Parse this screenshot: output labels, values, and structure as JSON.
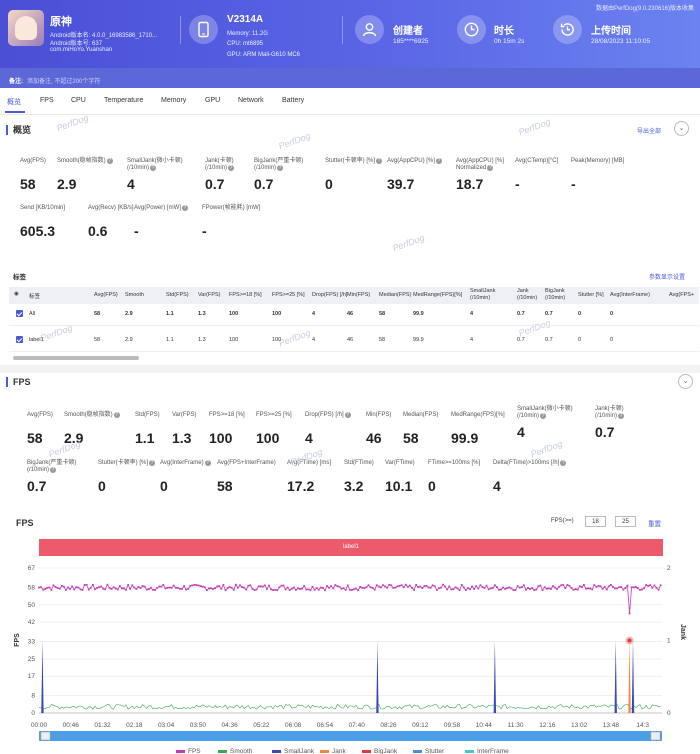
{
  "header": {
    "top_note": "数据由PerfDog(9.0.230616)版本收集",
    "app_name": "原神",
    "app_version": "Android版本名: 4.0.0_16983586_1710...",
    "app_build": "Android版本号: 637",
    "package": "com.miHoYo.Yuanshan",
    "device": {
      "name": "V2314A",
      "memory": "Memory: 11.2G",
      "cpu": "CPU: mt6895",
      "gpu": "GPU: ARM Mali-G610 MC6"
    },
    "creator_label": "创建者",
    "creator_value": "185****6925",
    "duration_label": "时长",
    "duration_value": "0h 15m 2s",
    "upload_label": "上传时间",
    "upload_value": "28/08/2023 11:10:05",
    "remark_label": "备注:",
    "remark_placeholder": "添加备注, 不超过200个字符"
  },
  "tabs": [
    "概览",
    "FPS",
    "CPU",
    "Temperature",
    "Memory",
    "GPU",
    "Network",
    "Battery"
  ],
  "overview": {
    "title": "概览",
    "export": "导出全部",
    "metrics": [
      {
        "label": "Avg(FPS)",
        "value": "58"
      },
      {
        "label": "Smooth(稳帧指数)",
        "value": "2.9",
        "q": true
      },
      {
        "label": "SmallJank(微小卡顿)",
        "label2": "(/10min)",
        "value": "4",
        "q": true
      },
      {
        "label": "Jank(卡顿)",
        "label2": "(/10min)",
        "value": "0.7",
        "q": true
      },
      {
        "label": "BigJank(严重卡顿)",
        "label2": "(/10min)",
        "value": "0.7",
        "q": true
      },
      {
        "label": "Stutter(卡顿率) [%]",
        "value": "0",
        "q": true
      },
      {
        "label": "Avg(AppCPU) [%]",
        "value": "39.7",
        "q": true
      },
      {
        "label": "Avg(AppCPU) [%]",
        "label2": "Normalized",
        "value": "18.7",
        "q": true
      },
      {
        "label": "Avg(CTemp)[°C]",
        "value": "-"
      },
      {
        "label": "Peak(Memory) [MB]",
        "value": "-"
      },
      {
        "label": "Send [KB/10min]",
        "value": "605.3"
      },
      {
        "label": "Avg(Recv) [KB/s]",
        "value": "0.6"
      },
      {
        "label": "Avg(Power) [mW]",
        "value": "-",
        "q": true
      },
      {
        "label": "FPower(帧能耗) [mW]",
        "value": "-"
      }
    ]
  },
  "tags": {
    "title": "标签",
    "settings": "参数显示设置",
    "columns": [
      "标签",
      "Avg(FPS)",
      "Smooth",
      "Std(FPS)",
      "Var(FPS)",
      "FPS>=18 [%]",
      "FPS>=25 [%]",
      "Drop(FPS) [/h]",
      "Min(FPS)",
      "Median(FPS)",
      "MedRange(FPS)[%]",
      "SmallJank (/10min)",
      "Jank (/10min)",
      "BigJank (/10min)",
      "Stutter [%]",
      "Avg(InterFrame)",
      "Avg(FPS+"
    ],
    "rows": [
      [
        "All",
        "58",
        "2.9",
        "1.1",
        "1.3",
        "100",
        "100",
        "4",
        "46",
        "58",
        "99.9",
        "4",
        "0.7",
        "0.7",
        "0",
        "0"
      ],
      [
        "label1",
        "58",
        "2.9",
        "1.1",
        "1.3",
        "100",
        "100",
        "4",
        "46",
        "58",
        "99.9",
        "4",
        "0.7",
        "0.7",
        "0",
        "0"
      ]
    ]
  },
  "fps_section": {
    "title": "FPS",
    "metrics": [
      {
        "label": "Avg(FPS)",
        "value": "58"
      },
      {
        "label": "Smooth(稳帧指数)",
        "value": "2.9",
        "q": true
      },
      {
        "label": "Std(FPS)",
        "value": "1.1"
      },
      {
        "label": "Var(FPS)",
        "value": "1.3"
      },
      {
        "label": "FPS>=18 [%]",
        "value": "100"
      },
      {
        "label": "FPS>=25 [%]",
        "value": "100"
      },
      {
        "label": "Drop(FPS) [/h]",
        "value": "4",
        "q": true
      },
      {
        "label": "Min(FPS)",
        "value": "46"
      },
      {
        "label": "Median(FPS)",
        "value": "58"
      },
      {
        "label": "MedRange(FPS)[%]",
        "value": "99.9"
      },
      {
        "label": "SmallJank(微小卡顿)",
        "label2": "(/10min)",
        "value": "4",
        "q": true
      },
      {
        "label": "Jank(卡顿)",
        "label2": "(/10min)",
        "value": "0.7",
        "q": true
      },
      {
        "label": "BigJank(严重卡顿)",
        "label2": "(/10min)",
        "value": "0.7",
        "q": true
      },
      {
        "label": "Stutter(卡顿率) [%]",
        "value": "0",
        "q": true
      },
      {
        "label": "Avg(InterFrame)",
        "value": "0",
        "q": true
      },
      {
        "label": "Avg(FPS+InterFrame)",
        "value": "58"
      },
      {
        "label": "Avg(FTime) [ms]",
        "value": "17.2"
      },
      {
        "label": "Std(FTime)",
        "value": "3.2"
      },
      {
        "label": "Var(FTime)",
        "value": "10.1"
      },
      {
        "label": "FTime>=100ms [%]",
        "value": "0"
      },
      {
        "label": "Delta(FTime)>100ms [/h]",
        "value": "4",
        "q": true
      }
    ],
    "chart_title": "FPS",
    "threshold_label": "FPS(>=)",
    "threshold_a": "18",
    "threshold_b": "25",
    "reset": "重置",
    "label_bar": "label1"
  },
  "watermark": "PerfDog",
  "chart_data": {
    "type": "line",
    "ylabel": "FPS",
    "y2label": "Jank",
    "yticks": [
      0,
      8,
      17,
      25,
      33,
      42,
      50,
      58,
      67
    ],
    "y2ticks": [
      0,
      1,
      2
    ],
    "xticks": [
      "00:00",
      "00:46",
      "01:32",
      "02:18",
      "03:04",
      "03:50",
      "04:36",
      "05:22",
      "06:08",
      "06:54",
      "07:40",
      "08:26",
      "09:12",
      "09:58",
      "10:44",
      "11:30",
      "12:16",
      "13:02",
      "13:48",
      "14:3"
    ],
    "xrange_seconds": [
      0,
      902
    ],
    "ylim": [
      0,
      67
    ],
    "y2lim": [
      0,
      2
    ],
    "series": [
      {
        "name": "FPS",
        "color": "#c23fb8",
        "avg": 58,
        "min": 46
      },
      {
        "name": "Smooth",
        "color": "#3aa855",
        "avg": 2.9
      },
      {
        "name": "SmallJank",
        "color": "#3b49b8",
        "events_time_s": [
          5,
          490,
          660,
          835,
          860
        ]
      },
      {
        "name": "Jank",
        "color": "#f08a3c",
        "events_time_s": [
          855
        ]
      },
      {
        "name": "BigJank",
        "color": "#e03c3c",
        "events_time_s": [
          855
        ]
      },
      {
        "name": "Stutter",
        "color": "#4c8fd6"
      },
      {
        "name": "InterFrame",
        "color": "#46c7c7"
      }
    ]
  }
}
